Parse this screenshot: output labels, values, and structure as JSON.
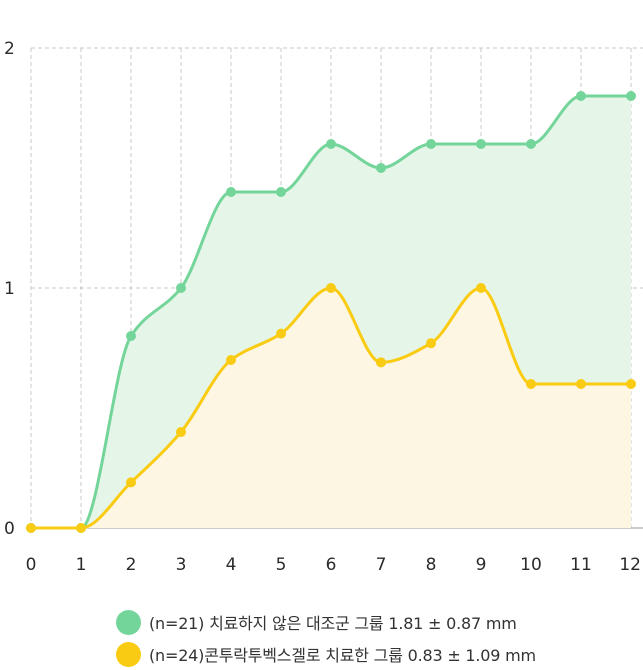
{
  "chart_data": {
    "type": "area",
    "title": "",
    "xlabel": "",
    "ylabel": "",
    "x": [
      0,
      1,
      2,
      3,
      4,
      5,
      6,
      7,
      8,
      9,
      10,
      11,
      12
    ],
    "xlim": [
      0,
      12
    ],
    "ylim": [
      0,
      2
    ],
    "y_ticks": [
      "0",
      "1",
      "2"
    ],
    "x_ticks": [
      "0",
      "1",
      "2",
      "3",
      "4",
      "5",
      "6",
      "7",
      "8",
      "9",
      "10",
      "11",
      "12"
    ],
    "grid": true,
    "legend_position": "bottom",
    "series": [
      {
        "name": "(n=21) 치료하지 않은 대조군 그룹 1.81 ± 0.87 mm",
        "values": [
          0,
          0,
          0.8,
          1.0,
          1.4,
          1.4,
          1.6,
          1.5,
          1.6,
          1.6,
          1.6,
          1.8,
          1.8
        ],
        "color": "#74D59A",
        "fill": "#E5F6E8"
      },
      {
        "name": "(n=24)콘투락투벡스겔로 치료한 그룹 0.83 ± 1.09 mm",
        "values": [
          0,
          0,
          0.19,
          0.4,
          0.7,
          0.81,
          1.0,
          0.69,
          0.77,
          1.0,
          0.6,
          0.6,
          0.6
        ],
        "color": "#F9CB12",
        "fill": "#FDF6E3"
      }
    ]
  }
}
